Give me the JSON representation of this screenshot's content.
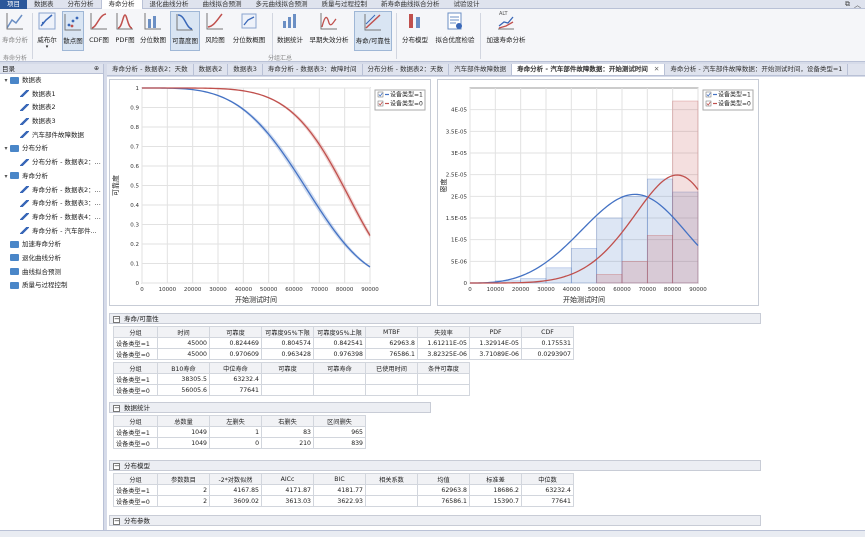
{
  "menubar": {
    "items": [
      "项目",
      "数据表",
      "分布分析",
      "寿命分析",
      "退化曲线分析",
      "曲线拟合预测",
      "多元曲线拟合预测",
      "质量与过程控制",
      "新寿命曲线拟合分析",
      "试验设计"
    ],
    "active": 3
  },
  "ribbon": {
    "buttons": [
      {
        "label": "寿命分析",
        "icon": "line-chart-icon",
        "disabled": true
      },
      {
        "label": "威布尔",
        "icon": "weibull-icon",
        "dropdown": true
      },
      {
        "label": "散点图",
        "icon": "scatter-plot-icon",
        "selected": true
      },
      {
        "label": "CDF图",
        "icon": "cdf-icon"
      },
      {
        "label": "PDF图",
        "icon": "pdf-icon"
      },
      {
        "label": "分位数图",
        "icon": "quantile-icon"
      },
      {
        "label": "可靠度图",
        "icon": "reliability-icon",
        "selected": true
      },
      {
        "label": "风险图",
        "icon": "hazard-icon"
      },
      {
        "label": "分位数概图",
        "icon": "quantile-profile-icon"
      },
      {
        "label": "数据统计",
        "icon": "statistics-icon"
      },
      {
        "label": "早期失效分析",
        "icon": "early-failure-icon"
      },
      {
        "label": "寿命/可靠性",
        "icon": "life-reliability-icon",
        "selected": true
      },
      {
        "label": "分布模型",
        "icon": "distribution-model-icon"
      },
      {
        "label": "拟合优度检验",
        "icon": "goodness-of-fit-icon"
      },
      {
        "label": "加速寿命分析",
        "icon": "accelerated-life-icon"
      }
    ],
    "groups": [
      "寿命分析",
      "分组汇总"
    ],
    "alt_badge": "ALT"
  },
  "sidebar": {
    "title": "目录",
    "pin": "⊕",
    "items": [
      {
        "label": "数据表",
        "level": 0,
        "icon": "folder-icon",
        "toggle": "▾"
      },
      {
        "label": "数据表1",
        "level": 1,
        "icon": "table-edit-icon"
      },
      {
        "label": "数据表2",
        "level": 1,
        "icon": "table-edit-icon"
      },
      {
        "label": "数据表3",
        "level": 1,
        "icon": "table-edit-icon"
      },
      {
        "label": "汽车部件故障数据",
        "level": 1,
        "icon": "table-edit-icon"
      },
      {
        "label": "分布分析",
        "level": 0,
        "icon": "folder-icon",
        "toggle": "▾"
      },
      {
        "label": "分布分析 - 数据表2：...",
        "level": 1,
        "icon": "chart-icon"
      },
      {
        "label": "寿命分析",
        "level": 0,
        "icon": "folder-icon",
        "toggle": "▾"
      },
      {
        "label": "寿命分析 - 数据表2：...",
        "level": 1,
        "icon": "chart-icon"
      },
      {
        "label": "寿命分析 - 数据表3：...",
        "level": 1,
        "icon": "chart-icon"
      },
      {
        "label": "寿命分析 - 数据表4：...",
        "level": 1,
        "icon": "chart-icon"
      },
      {
        "label": "寿命分析 - 汽车部件...",
        "level": 1,
        "icon": "chart-icon"
      },
      {
        "label": "加速寿命分析",
        "level": 0,
        "icon": "folder-icon"
      },
      {
        "label": "退化曲线分析",
        "level": 0,
        "icon": "folder-icon"
      },
      {
        "label": "曲线拟合预测",
        "level": 0,
        "icon": "folder-icon"
      },
      {
        "label": "质量与过程控制",
        "level": 0,
        "icon": "folder-icon"
      }
    ]
  },
  "tabs": [
    {
      "label": "寿命分析 - 数据表2：天数"
    },
    {
      "label": "数据表2"
    },
    {
      "label": "数据表3"
    },
    {
      "label": "寿命分析 - 数据表3：故障时间"
    },
    {
      "label": "分布分析 - 数据表2：天数"
    },
    {
      "label": "汽车部件故障数据"
    },
    {
      "label": "寿命分析 - 汽车部件故障数据：开始测试时间",
      "active": true,
      "close": "✕"
    },
    {
      "label": "寿命分析 - 汽车部件故障数据：开始测试时间，设备类型=1"
    }
  ],
  "chart_data": [
    {
      "type": "line",
      "ylabel": "可靠度",
      "xlabel": "开始测试时间",
      "xlim": [
        0,
        90000
      ],
      "ylim": [
        0,
        1
      ],
      "x_ticks": [
        0,
        10000,
        20000,
        30000,
        40000,
        50000,
        60000,
        70000,
        80000,
        90000
      ],
      "y_ticks": [
        0,
        0.1,
        0.2,
        0.3,
        0.4,
        0.5,
        0.6,
        0.7,
        0.8,
        0.9,
        1
      ],
      "grid": true,
      "legend": "top-right",
      "series": [
        {
          "name": "设备类型=1",
          "color": "#4472c4",
          "model": "weibull",
          "scale": 70640,
          "shape": 3.78,
          "confidence_band": true
        },
        {
          "name": "设备类型=0",
          "color": "#c0504d",
          "model": "weibull",
          "scale": 84650,
          "shape": 5.64,
          "confidence_band": true
        }
      ]
    },
    {
      "type": "bar",
      "ylabel": "密度",
      "xlabel": "开始测试时间",
      "xlim": [
        0,
        90000
      ],
      "ylim": [
        0,
        4.5e-05
      ],
      "x_ticks": [
        0,
        10000,
        20000,
        30000,
        40000,
        50000,
        60000,
        70000,
        80000,
        90000
      ],
      "y_tick_labels": [
        "0",
        "5E-06",
        "1E-05",
        "1.5E-05",
        "2E-05",
        "2.5E-05",
        "3E-05",
        "3.5E-05",
        "4E-05"
      ],
      "y_ticks": [
        0,
        5e-06,
        1e-05,
        1.5e-05,
        2e-05,
        2.5e-05,
        3e-05,
        3.5e-05,
        4e-05
      ],
      "grid": true,
      "legend": "top-right",
      "bin_edges": [
        0,
        10000,
        20000,
        30000,
        40000,
        50000,
        60000,
        70000,
        80000,
        90000
      ],
      "series": [
        {
          "name": "设备类型=1",
          "color": "#4472c4",
          "histogram": [
            0,
            5e-07,
            1e-06,
            3.5e-06,
            8e-06,
            1.5e-05,
            2e-05,
            2.4e-05,
            2.1e-05
          ],
          "curve": {
            "model": "weibull",
            "scale": 70640,
            "shape": 3.78
          }
        },
        {
          "name": "设备类型=0",
          "color": "#c0504d",
          "histogram": [
            0,
            0,
            0,
            0,
            0,
            2e-06,
            5e-06,
            1.1e-05,
            4.2e-05
          ],
          "curve": {
            "model": "weibull",
            "scale": 84650,
            "shape": 5.64
          }
        }
      ]
    }
  ],
  "sections": {
    "life": {
      "title": "寿命/可靠性",
      "headers": [
        "分组",
        "时间",
        "可靠度",
        "可靠度95%下限",
        "可靠度95%上限",
        "MTBF",
        "失效率",
        "PDF",
        "CDF"
      ],
      "rows": [
        [
          "设备类型=1",
          "45000",
          "0.824469",
          "0.804574",
          "0.842541",
          "62963.8",
          "1.61211E-05",
          "1.32914E-05",
          "0.175531"
        ],
        [
          "设备类型=0",
          "45000",
          "0.970609",
          "0.963428",
          "0.976398",
          "76586.1",
          "3.82325E-06",
          "3.71089E-06",
          "0.0293907"
        ]
      ],
      "headers2": [
        "分组",
        "B10寿命",
        "中位寿命",
        "可靠度",
        "可靠寿命",
        "已使用时间",
        "条件可靠度"
      ],
      "rows2": [
        [
          "设备类型=1",
          "38305.5",
          "63232.4",
          "",
          "",
          "",
          ""
        ],
        [
          "设备类型=0",
          "56005.6",
          "77641",
          "",
          "",
          "",
          ""
        ]
      ]
    },
    "stats": {
      "title": "数据统计",
      "headers": [
        "分组",
        "总数量",
        "左删失",
        "右删失",
        "区间删失"
      ],
      "rows": [
        [
          "设备类型=1",
          "1049",
          "1",
          "83",
          "965"
        ],
        [
          "设备类型=0",
          "1049",
          "0",
          "210",
          "839"
        ]
      ]
    },
    "model": {
      "title": "分布模型",
      "headers": [
        "分组",
        "参数数目",
        "-2*对数似然",
        "AICc",
        "BIC",
        "相关系数",
        "均值",
        "标准差",
        "中位数"
      ],
      "rows": [
        [
          "设备类型=1",
          "2",
          "4167.85",
          "4171.87",
          "4181.77",
          "",
          "62963.8",
          "18686.2",
          "63232.4"
        ],
        [
          "设备类型=0",
          "2",
          "3609.02",
          "3613.03",
          "3622.93",
          "",
          "76586.1",
          "15390.7",
          "77641"
        ]
      ]
    },
    "params": {
      "title": "分布参数"
    }
  }
}
